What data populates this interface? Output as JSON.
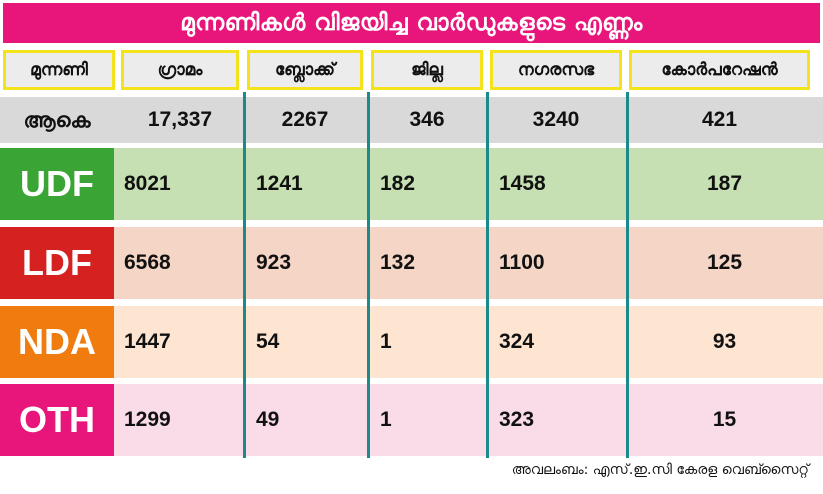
{
  "colors": {
    "title_bg": "#e8157a",
    "header_border": "#f4e21a",
    "divider": "#1b8a8a",
    "total_bg": "#d9d9d9"
  },
  "chart_data": {
    "type": "table",
    "title": "മുന്നണികൾ വിജയിച്ച വാർഡുകളുടെ എണ്ണം",
    "columns": [
      "മുന്നണി",
      "ഗ്രാമം",
      "ബ്ലോക്ക്",
      "ജില്ല",
      "നഗരസഭ",
      "കോർപറേഷൻ"
    ],
    "total": {
      "label": "ആകെ",
      "values": [
        "17,337",
        "2267",
        "346",
        "3240",
        "421"
      ]
    },
    "rows": [
      {
        "party": "UDF",
        "color": "#3aa535",
        "row_bg": "#c6e0b4",
        "values": [
          "8021",
          "1241",
          "182",
          "1458",
          "187"
        ]
      },
      {
        "party": "LDF",
        "color": "#d62121",
        "row_bg": "#f5d5c5",
        "values": [
          "6568",
          "923",
          "132",
          "1100",
          "125"
        ]
      },
      {
        "party": "NDA",
        "color": "#f07c10",
        "row_bg": "#fde5d2",
        "values": [
          "1447",
          "54",
          "1",
          "324",
          "93"
        ]
      },
      {
        "party": "OTH",
        "color": "#e8157a",
        "row_bg": "#fadce8",
        "values": [
          "1299",
          "49",
          "1",
          "323",
          "15"
        ]
      }
    ],
    "source": "അവലംബം: എസ്.ഇ.സി കേരള വെബ്സൈറ്റ്"
  }
}
